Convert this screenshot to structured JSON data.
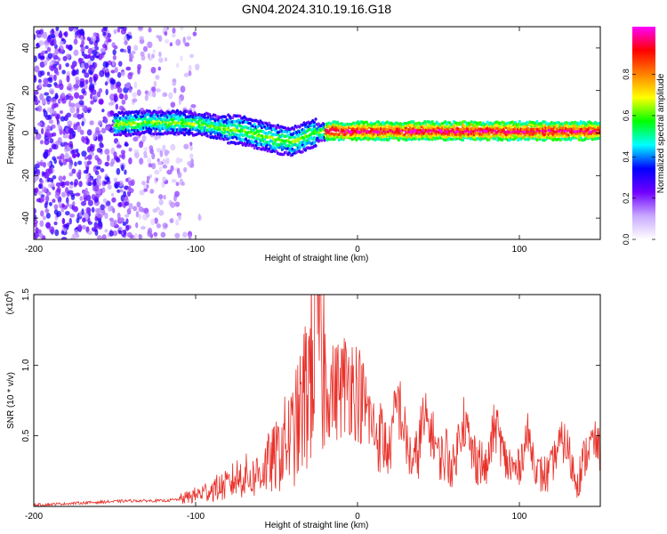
{
  "title": "GN04.2024.310.19.16.G18",
  "chart_data": [
    {
      "type": "heatmap",
      "xlabel": "Height of straight line (km)",
      "ylabel": "Frequency (Hz)",
      "xlim": [
        -200,
        150
      ],
      "ylim": [
        -50,
        50
      ],
      "xticks": [
        -200,
        -100,
        0,
        100
      ],
      "yticks": [
        -40,
        -20,
        0,
        20,
        40
      ],
      "grid": false,
      "colorbar": {
        "label": "Normalized spectral amplitude",
        "range": [
          0,
          1
        ],
        "ticks": [
          "0.0",
          "0.2",
          "0.4",
          "0.6",
          "0.8"
        ],
        "colors": [
          "#ffffff",
          "#c8a8ff",
          "#7000ff",
          "#0000ff",
          "#00ffff",
          "#00ff00",
          "#ffff00",
          "#ff8000",
          "#ff0000",
          "#ff00ff"
        ]
      },
      "ridge": {
        "name": "dominant frequency trace",
        "x": [
          -150,
          -130,
          -110,
          -95,
          -80,
          -70,
          -60,
          -50,
          -40,
          -30,
          -20,
          -10,
          0,
          20,
          50,
          100,
          150
        ],
        "y": [
          4,
          5,
          5,
          4,
          2,
          1,
          -1,
          -3,
          -4,
          -1,
          1,
          1,
          1,
          1,
          1,
          1,
          1
        ]
      },
      "noise_region_x": [
        -200,
        -97
      ]
    },
    {
      "type": "line",
      "xlabel": "Height of straight line (km)",
      "ylabel": "SNR (10 * v/v)",
      "y_multiplier_label": "(x10",
      "y_multiplier_exp": "4",
      "xlim": [
        -200,
        150
      ],
      "ylim": [
        0,
        1.5
      ],
      "xticks": [
        -200,
        -100,
        0,
        100
      ],
      "yticks": [
        "0.5",
        "1.0",
        "1.5"
      ],
      "grid": false,
      "series": [
        {
          "color": "#e8312a",
          "x": [
            -200,
            -180,
            -160,
            -140,
            -120,
            -110,
            -100,
            -90,
            -80,
            -75,
            -70,
            -65,
            -60,
            -55,
            -50,
            -45,
            -40,
            -35,
            -30,
            -27,
            -25,
            -22,
            -20,
            -15,
            -10,
            -5,
            0,
            5,
            10,
            15,
            20,
            25,
            30,
            35,
            40,
            45,
            50,
            55,
            60,
            65,
            70,
            75,
            80,
            85,
            90,
            95,
            100,
            105,
            110,
            115,
            120,
            125,
            130,
            135,
            140,
            145,
            150
          ],
          "values": [
            0.01,
            0.02,
            0.03,
            0.04,
            0.04,
            0.05,
            0.08,
            0.12,
            0.15,
            0.2,
            0.22,
            0.2,
            0.25,
            0.3,
            0.35,
            0.45,
            0.5,
            0.65,
            0.9,
            1.2,
            1.45,
            1.2,
            0.9,
            0.8,
            0.85,
            0.9,
            0.82,
            0.7,
            0.55,
            0.62,
            0.4,
            0.62,
            0.45,
            0.42,
            0.58,
            0.42,
            0.35,
            0.5,
            0.3,
            0.52,
            0.38,
            0.48,
            0.28,
            0.45,
            0.35,
            0.4,
            0.3,
            0.38,
            0.25,
            0.35,
            0.3,
            0.32,
            0.38,
            0.32,
            0.36,
            0.33,
            0.35
          ]
        }
      ]
    }
  ]
}
